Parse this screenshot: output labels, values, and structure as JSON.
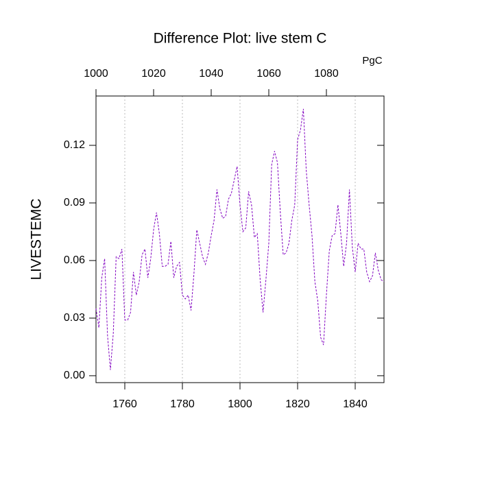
{
  "chart_data": {
    "type": "line",
    "title": "Difference Plot: live stem C",
    "ylabel": "LIVESTEMC",
    "x2label": "PgC",
    "x": [
      1750,
      1751,
      1752,
      1753,
      1754,
      1755,
      1756,
      1757,
      1758,
      1759,
      1760,
      1761,
      1762,
      1763,
      1764,
      1765,
      1766,
      1767,
      1768,
      1769,
      1770,
      1771,
      1772,
      1773,
      1774,
      1775,
      1776,
      1777,
      1778,
      1779,
      1780,
      1781,
      1782,
      1783,
      1784,
      1785,
      1786,
      1787,
      1788,
      1789,
      1790,
      1791,
      1792,
      1793,
      1794,
      1795,
      1796,
      1797,
      1798,
      1799,
      1800,
      1801,
      1802,
      1803,
      1804,
      1805,
      1806,
      1807,
      1808,
      1809,
      1810,
      1811,
      1812,
      1813,
      1814,
      1815,
      1816,
      1817,
      1818,
      1819,
      1820,
      1821,
      1822,
      1823,
      1824,
      1825,
      1826,
      1827,
      1828,
      1829,
      1830,
      1831,
      1832,
      1833,
      1834,
      1835,
      1836,
      1837,
      1838,
      1839,
      1840,
      1841,
      1842,
      1843,
      1844,
      1845,
      1846,
      1847,
      1848,
      1849,
      1850
    ],
    "series": [
      {
        "color": "#8000c0",
        "values": [
          0.035,
          0.025,
          0.051,
          0.061,
          0.021,
          0.003,
          0.022,
          0.062,
          0.061,
          0.066,
          0.029,
          0.029,
          0.033,
          0.054,
          0.042,
          0.049,
          0.063,
          0.066,
          0.051,
          0.061,
          0.076,
          0.085,
          0.074,
          0.057,
          0.057,
          0.058,
          0.07,
          0.051,
          0.057,
          0.059,
          0.042,
          0.04,
          0.042,
          0.034,
          0.053,
          0.076,
          0.069,
          0.062,
          0.058,
          0.064,
          0.073,
          0.081,
          0.097,
          0.087,
          0.082,
          0.083,
          0.092,
          0.095,
          0.102,
          0.109,
          0.089,
          0.075,
          0.077,
          0.096,
          0.089,
          0.072,
          0.074,
          0.05,
          0.033,
          0.05,
          0.069,
          0.11,
          0.117,
          0.111,
          0.085,
          0.063,
          0.064,
          0.069,
          0.081,
          0.089,
          0.123,
          0.128,
          0.139,
          0.107,
          0.089,
          0.073,
          0.049,
          0.039,
          0.02,
          0.016,
          0.042,
          0.065,
          0.073,
          0.074,
          0.089,
          0.074,
          0.057,
          0.069,
          0.097,
          0.067,
          0.054,
          0.069,
          0.066,
          0.066,
          0.054,
          0.049,
          0.052,
          0.064,
          0.055,
          0.05,
          0.049
        ]
      }
    ],
    "xlim": [
      1750,
      1850
    ],
    "xticks": [
      1760,
      1780,
      1800,
      1820,
      1840
    ],
    "xtick_color": "#ff0000",
    "x2lim": [
      1000,
      1100
    ],
    "x2ticks": [
      1000,
      1020,
      1040,
      1060,
      1080
    ],
    "x2tick_color": "#0000ff",
    "ylim": [
      -0.0036,
      0.1457
    ],
    "yticks": [
      {
        "value": 0,
        "label": "0.00"
      },
      {
        "value": 0.03,
        "label": "0.03"
      },
      {
        "value": 0.06,
        "label": "0.06"
      },
      {
        "value": 0.09,
        "label": "0.09"
      },
      {
        "value": 0.12,
        "label": "0.12"
      }
    ],
    "grid": "x",
    "dashed": true
  }
}
